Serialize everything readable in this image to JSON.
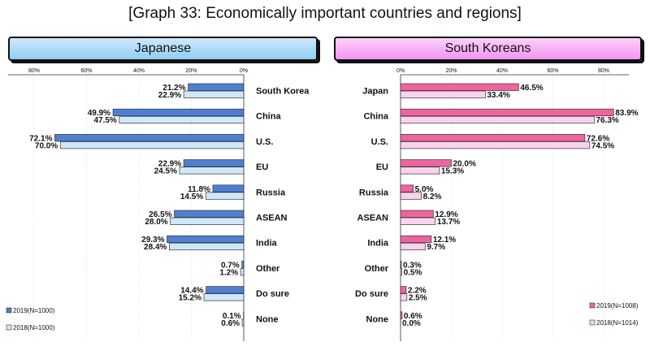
{
  "title": "[Graph 33: Economically important countries and regions]",
  "chart_data": [
    {
      "type": "bar",
      "orientation": "horizontal",
      "panel_title": "Japanese",
      "categories": [
        "South Korea",
        "China",
        "U.S.",
        "EU",
        "Russia",
        "ASEAN",
        "India",
        "Other",
        "Do sure",
        "None"
      ],
      "series": [
        {
          "name": "2019(N=1000)",
          "values": [
            21.2,
            49.9,
            72.1,
            22.9,
            11.8,
            26.5,
            29.3,
            0.7,
            14.4,
            0.1
          ],
          "color": "#4f7fd0"
        },
        {
          "name": "2018(N=1000)",
          "values": [
            22.9,
            47.5,
            70.0,
            24.5,
            14.5,
            28.0,
            28.4,
            1.2,
            15.2,
            0.6
          ],
          "color": "#cfe8f9"
        }
      ],
      "xlim": [
        0,
        90
      ],
      "ticks": [
        "80%",
        "60%",
        "40%",
        "20%",
        "0%"
      ],
      "axis_direction": "reversed",
      "legend_position": "bottom-left"
    },
    {
      "type": "bar",
      "orientation": "horizontal",
      "panel_title": "South Koreans",
      "categories": [
        "Japan",
        "China",
        "U.S.",
        "EU",
        "Russia",
        "ASEAN",
        "India",
        "Other",
        "Do sure",
        "None"
      ],
      "series": [
        {
          "name": "2019(N=1008)",
          "values": [
            46.5,
            83.9,
            72.6,
            20.0,
            5.0,
            12.9,
            12.1,
            0.3,
            2.2,
            0.6
          ],
          "color": "#f0649e"
        },
        {
          "name": "2018(N=1014)",
          "values": [
            33.4,
            76.3,
            74.5,
            15.3,
            8.2,
            13.7,
            9.7,
            0.5,
            2.5,
            0.0
          ],
          "color": "#fbd2ee"
        }
      ],
      "xlim": [
        0,
        90
      ],
      "ticks": [
        "0%",
        "20%",
        "40%",
        "60%",
        "80%"
      ],
      "axis_direction": "normal",
      "legend_position": "bottom-right"
    }
  ]
}
